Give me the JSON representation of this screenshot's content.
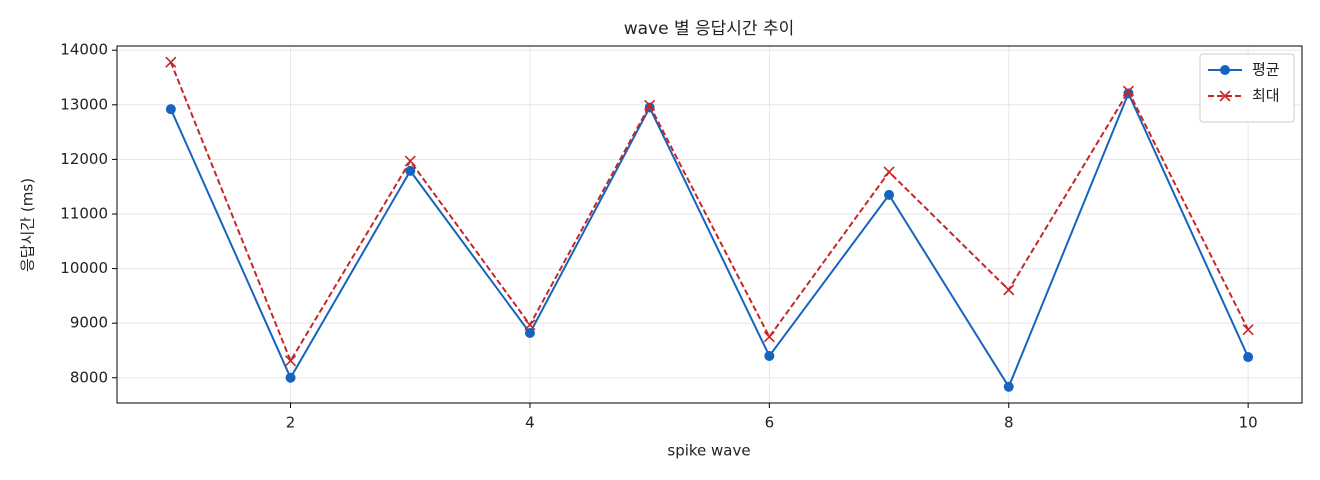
{
  "chart_data": {
    "type": "line",
    "title": "wave 별 응답시간 추이",
    "x_label": "spike wave",
    "y_label": "응답시간 (ms)",
    "x": [
      1,
      2,
      3,
      4,
      5,
      6,
      7,
      8,
      9,
      10
    ],
    "series": [
      {
        "name": "평균",
        "color": "#1565c0",
        "marker": "o",
        "linestyle": "solid",
        "values": [
          12920,
          8000,
          11790,
          8820,
          12950,
          8400,
          11350,
          7835,
          13210,
          8380
        ]
      },
      {
        "name": "최대",
        "color": "#c62828",
        "marker": "x",
        "linestyle": "dashed",
        "values": [
          13780,
          8310,
          11970,
          8970,
          12990,
          8750,
          11770,
          9610,
          13250,
          8880
        ]
      }
    ],
    "xlim": [
      0.55,
      10.45
    ],
    "xticks": [
      2,
      4,
      6,
      8,
      10
    ],
    "ylim": [
      7538,
      14077
    ],
    "yticks": [
      8000,
      9000,
      10000,
      11000,
      12000,
      13000,
      14000
    ],
    "grid": true,
    "legend": "upper right"
  }
}
